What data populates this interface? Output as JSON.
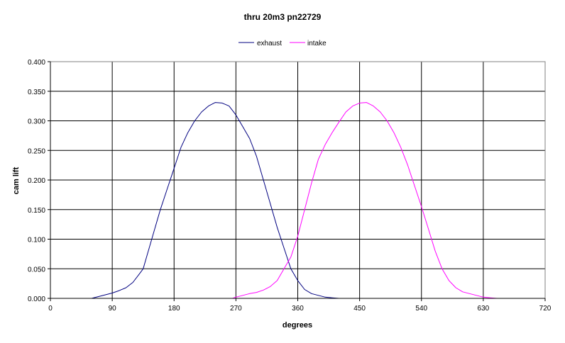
{
  "chart_data": {
    "type": "line",
    "title": "thru 20m3 pn22729",
    "xlabel": "degrees",
    "ylabel": "cam lift",
    "xlim": [
      0,
      720
    ],
    "ylim": [
      0,
      0.4
    ],
    "xticks": [
      "0",
      "90",
      "180",
      "270",
      "360",
      "450",
      "540",
      "630",
      "720"
    ],
    "yticks": [
      "0.000",
      "0.050",
      "0.100",
      "0.150",
      "0.200",
      "0.250",
      "0.300",
      "0.350",
      "0.400"
    ],
    "grid": true,
    "legend": "top-center",
    "series": [
      {
        "name": "exhaust",
        "color": "#000080",
        "points": [
          [
            60,
            0.0
          ],
          [
            70,
            0.003
          ],
          [
            80,
            0.006
          ],
          [
            90,
            0.009
          ],
          [
            100,
            0.013
          ],
          [
            110,
            0.018
          ],
          [
            120,
            0.027
          ],
          [
            130,
            0.042
          ],
          [
            135,
            0.05
          ],
          [
            140,
            0.07
          ],
          [
            150,
            0.11
          ],
          [
            160,
            0.15
          ],
          [
            170,
            0.185
          ],
          [
            180,
            0.22
          ],
          [
            190,
            0.255
          ],
          [
            200,
            0.28
          ],
          [
            210,
            0.3
          ],
          [
            220,
            0.315
          ],
          [
            230,
            0.325
          ],
          [
            240,
            0.331
          ],
          [
            250,
            0.33
          ],
          [
            260,
            0.325
          ],
          [
            270,
            0.31
          ],
          [
            280,
            0.29
          ],
          [
            290,
            0.27
          ],
          [
            300,
            0.24
          ],
          [
            310,
            0.2
          ],
          [
            320,
            0.16
          ],
          [
            330,
            0.12
          ],
          [
            340,
            0.085
          ],
          [
            350,
            0.05
          ],
          [
            360,
            0.03
          ],
          [
            370,
            0.015
          ],
          [
            380,
            0.008
          ],
          [
            390,
            0.005
          ],
          [
            400,
            0.002
          ],
          [
            410,
            0.001
          ],
          [
            420,
            0.0
          ]
        ]
      },
      {
        "name": "intake",
        "color": "#FF00FF",
        "points": [
          [
            265,
            0.0
          ],
          [
            270,
            0.002
          ],
          [
            280,
            0.005
          ],
          [
            290,
            0.008
          ],
          [
            300,
            0.01
          ],
          [
            310,
            0.014
          ],
          [
            320,
            0.02
          ],
          [
            330,
            0.03
          ],
          [
            340,
            0.05
          ],
          [
            350,
            0.07
          ],
          [
            360,
            0.105
          ],
          [
            370,
            0.15
          ],
          [
            380,
            0.195
          ],
          [
            390,
            0.235
          ],
          [
            400,
            0.26
          ],
          [
            410,
            0.28
          ],
          [
            420,
            0.298
          ],
          [
            430,
            0.315
          ],
          [
            440,
            0.325
          ],
          [
            450,
            0.33
          ],
          [
            460,
            0.331
          ],
          [
            470,
            0.325
          ],
          [
            480,
            0.315
          ],
          [
            490,
            0.3
          ],
          [
            500,
            0.28
          ],
          [
            510,
            0.255
          ],
          [
            520,
            0.225
          ],
          [
            530,
            0.19
          ],
          [
            540,
            0.155
          ],
          [
            550,
            0.118
          ],
          [
            560,
            0.08
          ],
          [
            570,
            0.05
          ],
          [
            580,
            0.03
          ],
          [
            590,
            0.018
          ],
          [
            600,
            0.011
          ],
          [
            610,
            0.008
          ],
          [
            620,
            0.005
          ],
          [
            630,
            0.002
          ],
          [
            640,
            0.001
          ],
          [
            650,
            0.0
          ]
        ]
      }
    ]
  }
}
